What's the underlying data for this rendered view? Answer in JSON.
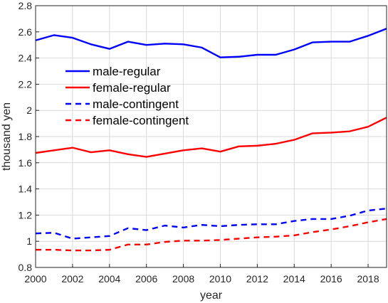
{
  "chart_data": {
    "type": "line",
    "title": "",
    "xlabel": "year",
    "ylabel": "thousand yen",
    "xlim": [
      2000,
      2019
    ],
    "ylim": [
      0.8,
      2.8
    ],
    "grid": true,
    "legend_position": "upper-left",
    "x": [
      2000,
      2001,
      2002,
      2003,
      2004,
      2005,
      2006,
      2007,
      2008,
      2009,
      2010,
      2011,
      2012,
      2013,
      2014,
      2015,
      2016,
      2017,
      2018,
      2019
    ],
    "x_ticks": [
      "2000",
      "2002",
      "2004",
      "2006",
      "2008",
      "2010",
      "2012",
      "2014",
      "2016",
      "2018"
    ],
    "y_ticks": [
      "0.8",
      "1",
      "1.2",
      "1.4",
      "1.6",
      "1.8",
      "2",
      "2.2",
      "2.4",
      "2.6",
      "2.8"
    ],
    "series": [
      {
        "name": "male-regular",
        "color": "#0000ff",
        "line_style": "solid",
        "values": [
          2.535,
          2.575,
          2.555,
          2.505,
          2.47,
          2.525,
          2.5,
          2.51,
          2.505,
          2.48,
          2.405,
          2.41,
          2.425,
          2.425,
          2.465,
          2.52,
          2.525,
          2.525,
          2.57,
          2.625
        ]
      },
      {
        "name": "female-regular",
        "color": "#ff0000",
        "line_style": "solid",
        "values": [
          1.675,
          1.695,
          1.715,
          1.68,
          1.695,
          1.665,
          1.645,
          1.67,
          1.695,
          1.71,
          1.685,
          1.725,
          1.73,
          1.745,
          1.775,
          1.825,
          1.83,
          1.84,
          1.875,
          1.945
        ]
      },
      {
        "name": "male-contingent",
        "color": "#0000ff",
        "line_style": "dashed",
        "values": [
          1.06,
          1.065,
          1.02,
          1.03,
          1.04,
          1.1,
          1.085,
          1.12,
          1.105,
          1.125,
          1.115,
          1.125,
          1.13,
          1.13,
          1.155,
          1.17,
          1.17,
          1.195,
          1.235,
          1.25
        ]
      },
      {
        "name": "female-contingent",
        "color": "#ff0000",
        "line_style": "dashed",
        "values": [
          0.935,
          0.935,
          0.93,
          0.93,
          0.935,
          0.975,
          0.975,
          0.995,
          1.005,
          1.005,
          1.01,
          1.02,
          1.03,
          1.035,
          1.045,
          1.07,
          1.09,
          1.115,
          1.145,
          1.17
        ]
      }
    ]
  }
}
